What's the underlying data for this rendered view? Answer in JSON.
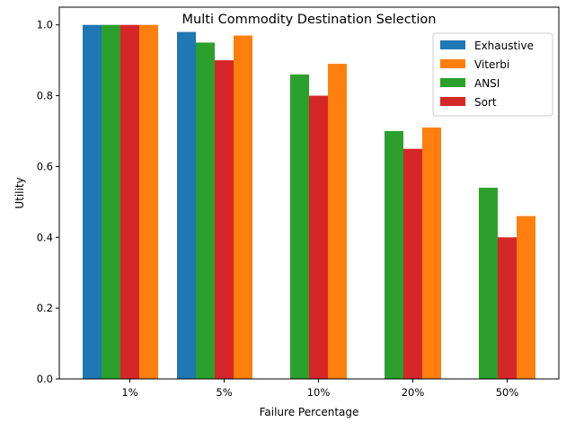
{
  "chart_data": {
    "type": "bar",
    "title": "Multi Commodity Destination Selection",
    "xlabel": "Failure Percentage",
    "ylabel": "Utility",
    "categories": [
      "1%",
      "5%",
      "10%",
      "20%",
      "50%"
    ],
    "ylim": [
      0,
      1.05
    ],
    "yticks": [
      "0.0",
      "0.2",
      "0.4",
      "0.6",
      "0.8",
      "1.0"
    ],
    "grid": false,
    "legend_position": "top-right",
    "series": [
      {
        "name": "Exhaustive",
        "color": "#1f77b4",
        "values": [
          1.0,
          0.98,
          null,
          null,
          null
        ]
      },
      {
        "name": "ANSI",
        "color": "#2ca02c",
        "values": [
          1.0,
          0.95,
          0.86,
          0.7,
          0.54
        ]
      },
      {
        "name": "Sort",
        "color": "#d62728",
        "values": [
          1.0,
          0.9,
          0.8,
          0.65,
          0.4
        ]
      },
      {
        "name": "Viterbi",
        "color": "#ff7f0e",
        "values": [
          1.0,
          0.97,
          0.89,
          0.71,
          0.46
        ]
      }
    ],
    "legend_order": [
      "Exhaustive",
      "Viterbi",
      "ANSI",
      "Sort"
    ]
  }
}
